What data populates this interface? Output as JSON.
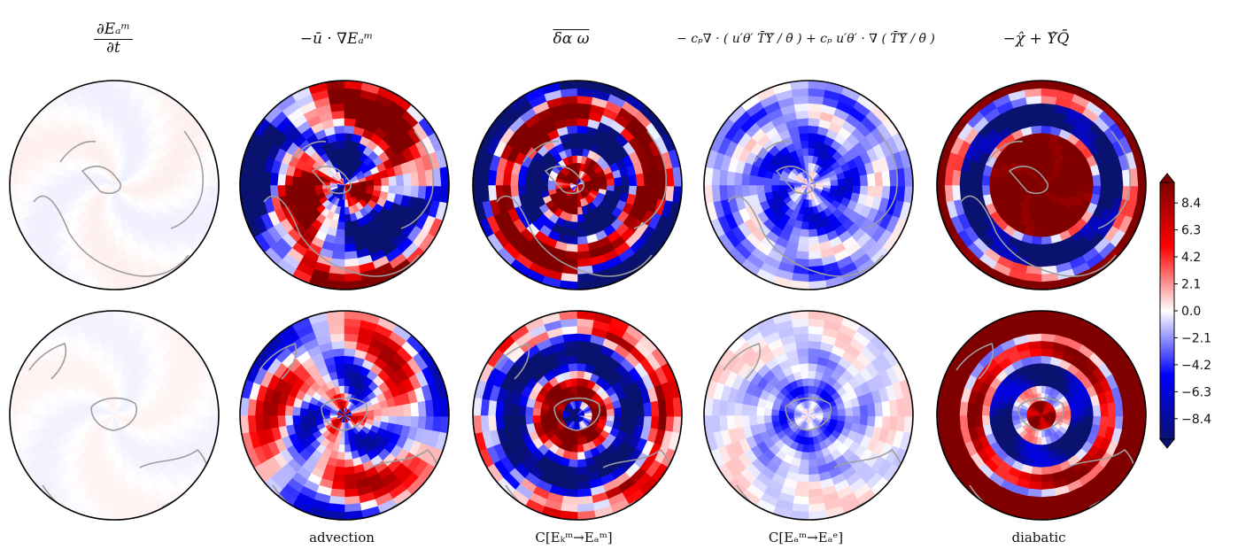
{
  "titles": {
    "col1_num": "∂Eₐᵐ",
    "col1_den": "∂t",
    "col2": "−ū · ∇Eₐᵐ",
    "col3": "δα ω",
    "col4": "− cₚ∇ · ( u′θ′ T̄Υ̂ / θ̄ ) + cₚ u′θ′ · ∇ ( T̄Υ̂ / θ̄ )",
    "col5": "−χ̂ + Υ̂Q̄"
  },
  "bottom_labels": {
    "col2": "advection",
    "col3": "C[Eₖᵐ→Eₐᵐ]",
    "col4": "C[Eₐᵐ→Eₐᵉ]",
    "col5": "diabatic"
  },
  "colors": {
    "colormap": [
      "#0a1270",
      "#0000ff",
      "#ffffff",
      "#ff0000",
      "#800000"
    ],
    "coastline": "#9e9e9e"
  },
  "chart_data": {
    "type": "heatmap",
    "projection": "polar",
    "rows": [
      "northern-hemisphere",
      "southern-hemisphere"
    ],
    "colorbar": {
      "ticks": [
        8.4,
        6.3,
        4.2,
        2.1,
        0.0,
        -2.1,
        -4.2,
        -6.3,
        -8.4
      ],
      "tick_labels": [
        "8.4",
        "6.3",
        "4.2",
        "2.1",
        "0.0",
        "−2.1",
        "−4.2",
        "−6.3",
        "−8.4"
      ],
      "range": [
        -10,
        10
      ],
      "extend": "both"
    },
    "panels": [
      {
        "row": 0,
        "col": 0,
        "pattern": "faint",
        "amp": 0.06
      },
      {
        "row": 0,
        "col": 1,
        "pattern": "adv_n",
        "amp": 1
      },
      {
        "row": 0,
        "col": 2,
        "pattern": "conv_n",
        "amp": 1
      },
      {
        "row": 0,
        "col": 3,
        "pattern": "eddy_n",
        "amp": 1
      },
      {
        "row": 0,
        "col": 4,
        "pattern": "diab_n",
        "amp": 1
      },
      {
        "row": 1,
        "col": 0,
        "pattern": "faint",
        "amp": 0.05
      },
      {
        "row": 1,
        "col": 1,
        "pattern": "adv_s",
        "amp": 1
      },
      {
        "row": 1,
        "col": 2,
        "pattern": "conv_s",
        "amp": 1
      },
      {
        "row": 1,
        "col": 3,
        "pattern": "eddy_s",
        "amp": 1
      },
      {
        "row": 1,
        "col": 4,
        "pattern": "diab_s",
        "amp": 1
      }
    ]
  }
}
